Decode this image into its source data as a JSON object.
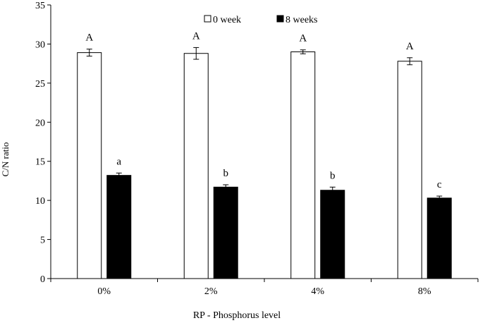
{
  "chart_data": {
    "type": "bar",
    "title": "",
    "xlabel": "RP - Phosphorus level",
    "ylabel": "C/N ratio",
    "categories": [
      "0%",
      "2%",
      "4%",
      "8%"
    ],
    "ylim": [
      0,
      35
    ],
    "yticks": [
      0,
      5,
      10,
      15,
      20,
      25,
      30,
      35
    ],
    "grid": false,
    "legend_position": "top-center",
    "series": [
      {
        "name": "0 week",
        "fill": "#ffffff",
        "stroke": "#000000",
        "values": [
          28.9,
          28.8,
          29.0,
          27.8
        ],
        "errors": [
          0.45,
          0.75,
          0.25,
          0.45
        ],
        "labels": [
          "A",
          "A",
          "A",
          "A"
        ]
      },
      {
        "name": "8 weeks",
        "fill": "#000000",
        "stroke": "#000000",
        "values": [
          13.2,
          11.7,
          11.3,
          10.3
        ],
        "errors": [
          0.3,
          0.3,
          0.4,
          0.25
        ],
        "labels": [
          "a",
          "b",
          "b",
          "c"
        ]
      }
    ]
  }
}
